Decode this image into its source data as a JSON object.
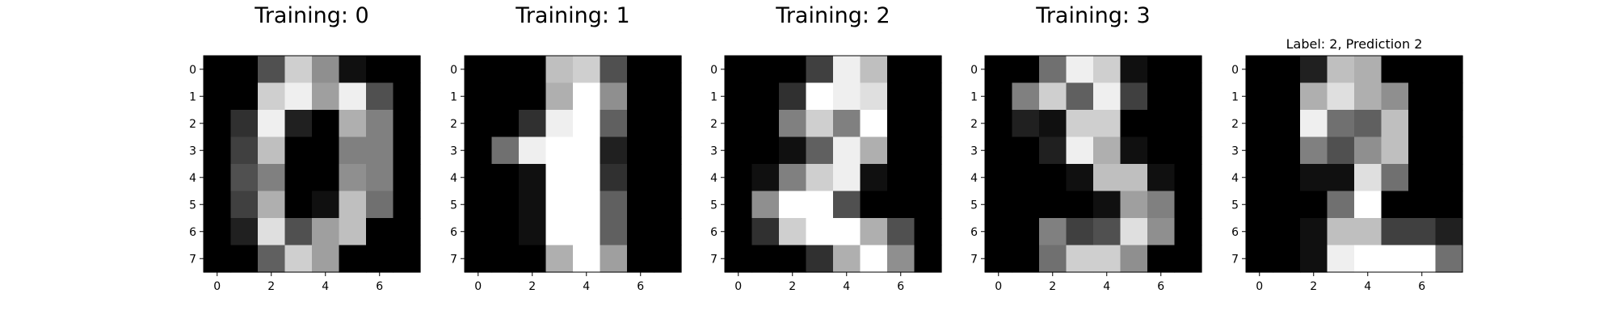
{
  "figure": {
    "background": "#ffffff"
  },
  "chart_data": [
    {
      "type": "heatmap",
      "title": "Training: 0",
      "xlabel": "",
      "ylabel": "",
      "colormap": "gray",
      "vmin": 0,
      "vmax": 16,
      "x_ticks": [
        "0",
        "2",
        "4",
        "6"
      ],
      "y_ticks": [
        "0",
        "1",
        "2",
        "3",
        "4",
        "5",
        "6",
        "7"
      ],
      "grid": false,
      "values": [
        [
          0,
          0,
          5,
          13,
          9,
          1,
          0,
          0
        ],
        [
          0,
          0,
          13,
          15,
          10,
          15,
          5,
          0
        ],
        [
          0,
          3,
          15,
          2,
          0,
          11,
          8,
          0
        ],
        [
          0,
          4,
          12,
          0,
          0,
          8,
          8,
          0
        ],
        [
          0,
          5,
          8,
          0,
          0,
          9,
          8,
          0
        ],
        [
          0,
          4,
          11,
          0,
          1,
          12,
          7,
          0
        ],
        [
          0,
          2,
          14,
          5,
          10,
          12,
          0,
          0
        ],
        [
          0,
          0,
          6,
          13,
          10,
          0,
          0,
          0
        ]
      ]
    },
    {
      "type": "heatmap",
      "title": "Training: 1",
      "xlabel": "",
      "ylabel": "",
      "colormap": "gray",
      "vmin": 0,
      "vmax": 16,
      "x_ticks": [
        "0",
        "2",
        "4",
        "6"
      ],
      "y_ticks": [
        "0",
        "1",
        "2",
        "3",
        "4",
        "5",
        "6",
        "7"
      ],
      "grid": false,
      "values": [
        [
          0,
          0,
          0,
          12,
          13,
          5,
          0,
          0
        ],
        [
          0,
          0,
          0,
          11,
          16,
          9,
          0,
          0
        ],
        [
          0,
          0,
          3,
          15,
          16,
          6,
          0,
          0
        ],
        [
          0,
          7,
          15,
          16,
          16,
          2,
          0,
          0
        ],
        [
          0,
          0,
          1,
          16,
          16,
          3,
          0,
          0
        ],
        [
          0,
          0,
          1,
          16,
          16,
          6,
          0,
          0
        ],
        [
          0,
          0,
          1,
          16,
          16,
          6,
          0,
          0
        ],
        [
          0,
          0,
          0,
          11,
          16,
          10,
          0,
          0
        ]
      ]
    },
    {
      "type": "heatmap",
      "title": "Training: 2",
      "xlabel": "",
      "ylabel": "",
      "colormap": "gray",
      "vmin": 0,
      "vmax": 16,
      "x_ticks": [
        "0",
        "2",
        "4",
        "6"
      ],
      "y_ticks": [
        "0",
        "1",
        "2",
        "3",
        "4",
        "5",
        "6",
        "7"
      ],
      "grid": false,
      "values": [
        [
          0,
          0,
          0,
          4,
          15,
          12,
          0,
          0
        ],
        [
          0,
          0,
          3,
          16,
          15,
          14,
          0,
          0
        ],
        [
          0,
          0,
          8,
          13,
          8,
          16,
          0,
          0
        ],
        [
          0,
          0,
          1,
          6,
          15,
          11,
          0,
          0
        ],
        [
          0,
          1,
          8,
          13,
          15,
          1,
          0,
          0
        ],
        [
          0,
          9,
          16,
          16,
          5,
          0,
          0,
          0
        ],
        [
          0,
          3,
          13,
          16,
          16,
          11,
          5,
          0
        ],
        [
          0,
          0,
          0,
          3,
          11,
          16,
          9,
          0
        ]
      ]
    },
    {
      "type": "heatmap",
      "title": "Training: 3",
      "xlabel": "",
      "ylabel": "",
      "colormap": "gray",
      "vmin": 0,
      "vmax": 16,
      "x_ticks": [
        "0",
        "2",
        "4",
        "6"
      ],
      "y_ticks": [
        "0",
        "1",
        "2",
        "3",
        "4",
        "5",
        "6",
        "7"
      ],
      "grid": false,
      "values": [
        [
          0,
          0,
          7,
          15,
          13,
          1,
          0,
          0
        ],
        [
          0,
          8,
          13,
          6,
          15,
          4,
          0,
          0
        ],
        [
          0,
          2,
          1,
          13,
          13,
          0,
          0,
          0
        ],
        [
          0,
          0,
          2,
          15,
          11,
          1,
          0,
          0
        ],
        [
          0,
          0,
          0,
          1,
          12,
          12,
          1,
          0
        ],
        [
          0,
          0,
          0,
          0,
          1,
          10,
          8,
          0
        ],
        [
          0,
          0,
          8,
          4,
          5,
          14,
          9,
          0
        ],
        [
          0,
          0,
          7,
          13,
          13,
          9,
          0,
          0
        ]
      ]
    },
    {
      "type": "heatmap",
      "title": "Label: 2, Prediction 2",
      "xlabel": "",
      "ylabel": "",
      "colormap": "gray",
      "vmin": 0,
      "vmax": 16,
      "x_ticks": [
        "0",
        "2",
        "4",
        "6"
      ],
      "y_ticks": [
        "0",
        "1",
        "2",
        "3",
        "4",
        "5",
        "6",
        "7"
      ],
      "grid": false,
      "values": [
        [
          0,
          0,
          2,
          12,
          11,
          0,
          0,
          0
        ],
        [
          0,
          0,
          11,
          14,
          11,
          9,
          0,
          0
        ],
        [
          0,
          0,
          15,
          7,
          6,
          12,
          0,
          0
        ],
        [
          0,
          0,
          8,
          5,
          9,
          12,
          0,
          0
        ],
        [
          0,
          0,
          1,
          1,
          14,
          7,
          0,
          0
        ],
        [
          0,
          0,
          0,
          7,
          16,
          0,
          0,
          0
        ],
        [
          0,
          0,
          1,
          12,
          12,
          4,
          4,
          2
        ],
        [
          0,
          0,
          1,
          15,
          16,
          16,
          16,
          7
        ]
      ]
    }
  ]
}
